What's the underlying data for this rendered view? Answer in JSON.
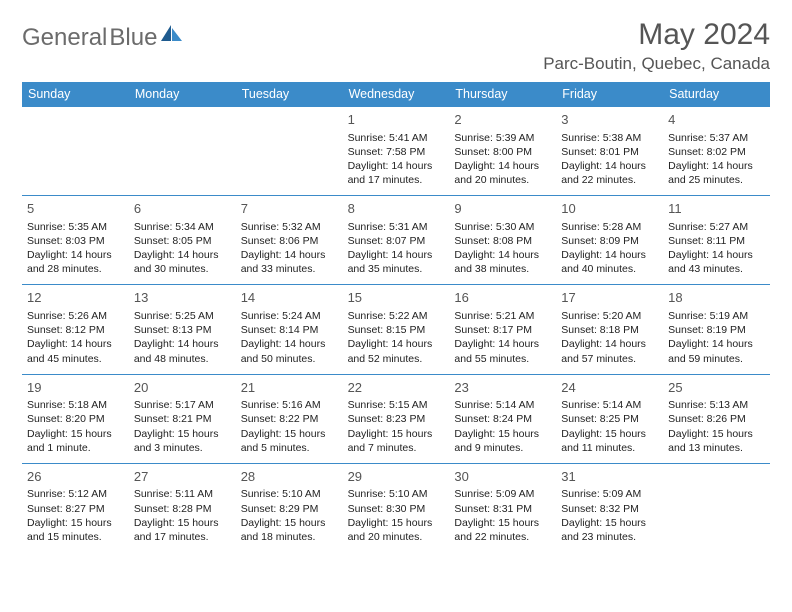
{
  "brand": {
    "part1": "General",
    "part2": "Blue"
  },
  "title": "May 2024",
  "location": "Parc-Boutin, Quebec, Canada",
  "colors": {
    "header_bg": "#3b8bc9",
    "header_fg": "#ffffff",
    "divider": "#3b8bc9",
    "title_color": "#555555",
    "body_text": "#222222",
    "logo_gray": "#6b6b6b",
    "logo_blue": "#2a7abf"
  },
  "dayNames": [
    "Sunday",
    "Monday",
    "Tuesday",
    "Wednesday",
    "Thursday",
    "Friday",
    "Saturday"
  ],
  "weeks": [
    [
      {
        "day": "",
        "sunrise": "",
        "sunset": "",
        "daylight": ""
      },
      {
        "day": "",
        "sunrise": "",
        "sunset": "",
        "daylight": ""
      },
      {
        "day": "",
        "sunrise": "",
        "sunset": "",
        "daylight": ""
      },
      {
        "day": "1",
        "sunrise": "Sunrise: 5:41 AM",
        "sunset": "Sunset: 7:58 PM",
        "daylight": "Daylight: 14 hours and 17 minutes."
      },
      {
        "day": "2",
        "sunrise": "Sunrise: 5:39 AM",
        "sunset": "Sunset: 8:00 PM",
        "daylight": "Daylight: 14 hours and 20 minutes."
      },
      {
        "day": "3",
        "sunrise": "Sunrise: 5:38 AM",
        "sunset": "Sunset: 8:01 PM",
        "daylight": "Daylight: 14 hours and 22 minutes."
      },
      {
        "day": "4",
        "sunrise": "Sunrise: 5:37 AM",
        "sunset": "Sunset: 8:02 PM",
        "daylight": "Daylight: 14 hours and 25 minutes."
      }
    ],
    [
      {
        "day": "5",
        "sunrise": "Sunrise: 5:35 AM",
        "sunset": "Sunset: 8:03 PM",
        "daylight": "Daylight: 14 hours and 28 minutes."
      },
      {
        "day": "6",
        "sunrise": "Sunrise: 5:34 AM",
        "sunset": "Sunset: 8:05 PM",
        "daylight": "Daylight: 14 hours and 30 minutes."
      },
      {
        "day": "7",
        "sunrise": "Sunrise: 5:32 AM",
        "sunset": "Sunset: 8:06 PM",
        "daylight": "Daylight: 14 hours and 33 minutes."
      },
      {
        "day": "8",
        "sunrise": "Sunrise: 5:31 AM",
        "sunset": "Sunset: 8:07 PM",
        "daylight": "Daylight: 14 hours and 35 minutes."
      },
      {
        "day": "9",
        "sunrise": "Sunrise: 5:30 AM",
        "sunset": "Sunset: 8:08 PM",
        "daylight": "Daylight: 14 hours and 38 minutes."
      },
      {
        "day": "10",
        "sunrise": "Sunrise: 5:28 AM",
        "sunset": "Sunset: 8:09 PM",
        "daylight": "Daylight: 14 hours and 40 minutes."
      },
      {
        "day": "11",
        "sunrise": "Sunrise: 5:27 AM",
        "sunset": "Sunset: 8:11 PM",
        "daylight": "Daylight: 14 hours and 43 minutes."
      }
    ],
    [
      {
        "day": "12",
        "sunrise": "Sunrise: 5:26 AM",
        "sunset": "Sunset: 8:12 PM",
        "daylight": "Daylight: 14 hours and 45 minutes."
      },
      {
        "day": "13",
        "sunrise": "Sunrise: 5:25 AM",
        "sunset": "Sunset: 8:13 PM",
        "daylight": "Daylight: 14 hours and 48 minutes."
      },
      {
        "day": "14",
        "sunrise": "Sunrise: 5:24 AM",
        "sunset": "Sunset: 8:14 PM",
        "daylight": "Daylight: 14 hours and 50 minutes."
      },
      {
        "day": "15",
        "sunrise": "Sunrise: 5:22 AM",
        "sunset": "Sunset: 8:15 PM",
        "daylight": "Daylight: 14 hours and 52 minutes."
      },
      {
        "day": "16",
        "sunrise": "Sunrise: 5:21 AM",
        "sunset": "Sunset: 8:17 PM",
        "daylight": "Daylight: 14 hours and 55 minutes."
      },
      {
        "day": "17",
        "sunrise": "Sunrise: 5:20 AM",
        "sunset": "Sunset: 8:18 PM",
        "daylight": "Daylight: 14 hours and 57 minutes."
      },
      {
        "day": "18",
        "sunrise": "Sunrise: 5:19 AM",
        "sunset": "Sunset: 8:19 PM",
        "daylight": "Daylight: 14 hours and 59 minutes."
      }
    ],
    [
      {
        "day": "19",
        "sunrise": "Sunrise: 5:18 AM",
        "sunset": "Sunset: 8:20 PM",
        "daylight": "Daylight: 15 hours and 1 minute."
      },
      {
        "day": "20",
        "sunrise": "Sunrise: 5:17 AM",
        "sunset": "Sunset: 8:21 PM",
        "daylight": "Daylight: 15 hours and 3 minutes."
      },
      {
        "day": "21",
        "sunrise": "Sunrise: 5:16 AM",
        "sunset": "Sunset: 8:22 PM",
        "daylight": "Daylight: 15 hours and 5 minutes."
      },
      {
        "day": "22",
        "sunrise": "Sunrise: 5:15 AM",
        "sunset": "Sunset: 8:23 PM",
        "daylight": "Daylight: 15 hours and 7 minutes."
      },
      {
        "day": "23",
        "sunrise": "Sunrise: 5:14 AM",
        "sunset": "Sunset: 8:24 PM",
        "daylight": "Daylight: 15 hours and 9 minutes."
      },
      {
        "day": "24",
        "sunrise": "Sunrise: 5:14 AM",
        "sunset": "Sunset: 8:25 PM",
        "daylight": "Daylight: 15 hours and 11 minutes."
      },
      {
        "day": "25",
        "sunrise": "Sunrise: 5:13 AM",
        "sunset": "Sunset: 8:26 PM",
        "daylight": "Daylight: 15 hours and 13 minutes."
      }
    ],
    [
      {
        "day": "26",
        "sunrise": "Sunrise: 5:12 AM",
        "sunset": "Sunset: 8:27 PM",
        "daylight": "Daylight: 15 hours and 15 minutes."
      },
      {
        "day": "27",
        "sunrise": "Sunrise: 5:11 AM",
        "sunset": "Sunset: 8:28 PM",
        "daylight": "Daylight: 15 hours and 17 minutes."
      },
      {
        "day": "28",
        "sunrise": "Sunrise: 5:10 AM",
        "sunset": "Sunset: 8:29 PM",
        "daylight": "Daylight: 15 hours and 18 minutes."
      },
      {
        "day": "29",
        "sunrise": "Sunrise: 5:10 AM",
        "sunset": "Sunset: 8:30 PM",
        "daylight": "Daylight: 15 hours and 20 minutes."
      },
      {
        "day": "30",
        "sunrise": "Sunrise: 5:09 AM",
        "sunset": "Sunset: 8:31 PM",
        "daylight": "Daylight: 15 hours and 22 minutes."
      },
      {
        "day": "31",
        "sunrise": "Sunrise: 5:09 AM",
        "sunset": "Sunset: 8:32 PM",
        "daylight": "Daylight: 15 hours and 23 minutes."
      },
      {
        "day": "",
        "sunrise": "",
        "sunset": "",
        "daylight": ""
      }
    ]
  ]
}
